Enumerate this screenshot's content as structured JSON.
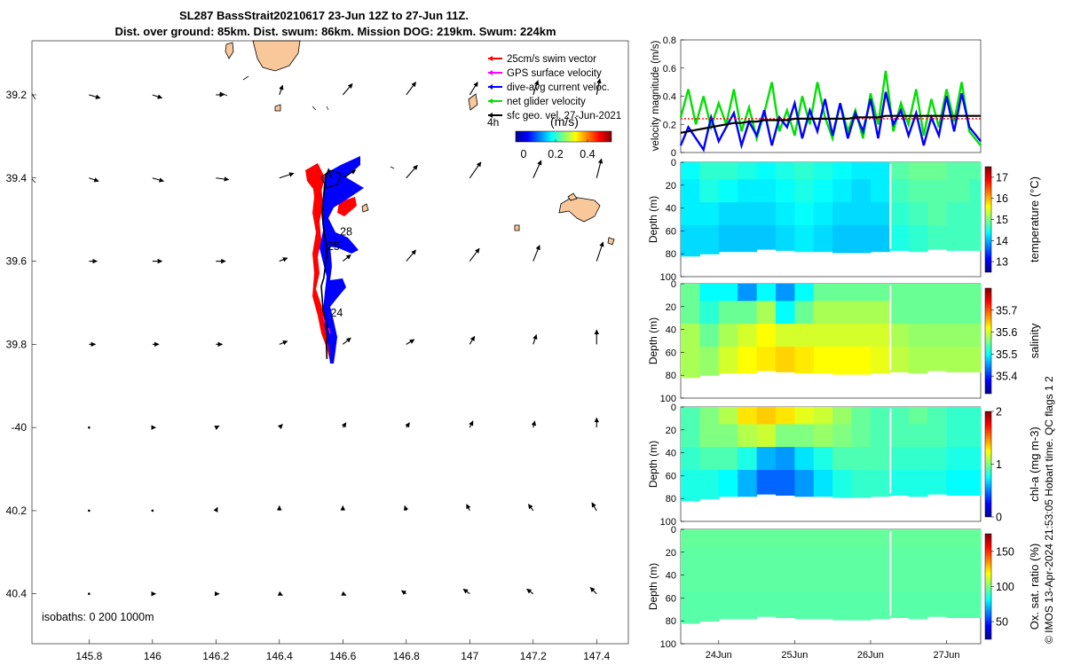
{
  "header": {
    "line1": "SL287 BassStrait20210617 23-Jun 12Z to 27-Jun 11Z.",
    "line2": "Dist. over ground: 85km. Dist. swum: 86km. Mission DOG: 219km. Swum: 224km"
  },
  "map": {
    "isobaths_label": "isobaths: 0   200  1000m",
    "age_label": "4h",
    "colorbar_title": "(m/s)",
    "colorbar_ticks": [
      "0",
      "0.2",
      "0.4"
    ],
    "colorbar_values": [
      0,
      0.2,
      0.4
    ],
    "colorbar_range": [
      -0.05,
      0.55
    ],
    "legend": [
      {
        "label": "25cm/s swim vector",
        "color": "#ff0000"
      },
      {
        "label": "GPS surface velocity",
        "color": "#ff00ff"
      },
      {
        "label": "dive-avg current veloc.",
        "color": "#0000ff"
      },
      {
        "label": "net glider velocity",
        "color": "#00e000"
      },
      {
        "label": "sfc geo. vel. 27-Jun-2021",
        "color": "#000000"
      }
    ],
    "day_labels": [
      {
        "text": "28"
      },
      {
        "text": "25"
      },
      {
        "text": "24"
      }
    ]
  },
  "colors": {
    "land": "#f8c89a",
    "red_track": "#ff0000",
    "blue_track": "#0000ff",
    "magenta": "#ff00ff"
  },
  "time_axis": {
    "ticks": [
      "24Jun",
      "25Jun",
      "26Jun",
      "27Jun"
    ]
  },
  "side_label": "© IMOS 13-Apr-2024 21:53:05 Hobart time. QC flags 1  2",
  "panels": {
    "velocity": {
      "ylabel": "velocity magnitude (m/s)"
    },
    "temperature": {
      "ylabel": "Depth (m)",
      "cbar_label": "temperature (°C)",
      "cbar_ticks": [
        "13",
        "14",
        "15",
        "16",
        "17"
      ]
    },
    "salinity": {
      "ylabel": "Depth (m)",
      "cbar_label": "salinity",
      "cbar_ticks": [
        "35.4",
        "35.5",
        "35.6",
        "35.7"
      ]
    },
    "chla": {
      "ylabel": "Depth (m)",
      "cbar_label": "chl-a (mg m-3)",
      "cbar_ticks": [
        "0",
        "1",
        "2"
      ]
    },
    "oxygen": {
      "ylabel": "Depth (m)",
      "cbar_label": "Ox. sat. ratio (%)",
      "cbar_ticks": [
        "50",
        "100",
        "150"
      ]
    }
  },
  "chart_data": [
    {
      "type": "scatter",
      "name": "glider track map",
      "xlim": [
        145.62,
        147.5
      ],
      "ylim": [
        -40.52,
        -39.07
      ],
      "x_ticks": [
        145.8,
        146,
        146.2,
        146.4,
        146.6,
        146.8,
        147,
        147.2,
        147.4
      ],
      "x_tick_labels": [
        "145.8",
        "146",
        "146.2",
        "146.4",
        "146.6",
        "146.8",
        "147",
        "147.2",
        "147.4"
      ],
      "y_ticks": [
        -39.2,
        -39.4,
        -39.6,
        -39.8,
        -40.0,
        -40.2,
        -40.4
      ],
      "y_tick_labels": [
        "39.2",
        "39.4",
        "39.6",
        "39.8",
        "-40",
        "40.2",
        "40.4"
      ],
      "track": {
        "lon": [
          146.55,
          146.548,
          146.552,
          146.545,
          146.538,
          146.535,
          146.532,
          146.54,
          146.545,
          146.55,
          146.548,
          146.542,
          146.538,
          146.535,
          146.538,
          146.54,
          146.542,
          146.545,
          146.55,
          146.555,
          146.56,
          146.565
        ],
        "lat": [
          -39.835,
          -39.8,
          -39.77,
          -39.74,
          -39.72,
          -39.69,
          -39.66,
          -39.64,
          -39.61,
          -39.585,
          -39.56,
          -39.54,
          -39.51,
          -39.48,
          -39.46,
          -39.44,
          -39.42,
          -39.405,
          -39.39,
          -39.38,
          -39.39,
          -39.4
        ]
      },
      "day_marks": [
        {
          "label": "24",
          "lon": 146.55,
          "lat": -39.725
        },
        {
          "label": "25",
          "lon": 146.54,
          "lat": -39.565
        },
        {
          "label": "28",
          "lon": 146.58,
          "lat": -39.53
        }
      ],
      "surface_velocity": {
        "grid_lon": [
          145.8,
          146.0,
          146.2,
          146.4,
          146.6,
          146.8,
          147.0,
          147.2,
          147.4
        ],
        "grid_lat": [
          -39.2,
          -39.4,
          -39.6,
          -39.8,
          -40.0,
          -40.2,
          -40.4
        ],
        "u": [
          [
            0.07,
            0.06,
            0.05,
            0.02,
            0.06,
            0.06,
            0.05,
            0.03,
            0.02
          ],
          [
            0.06,
            0.07,
            0.08,
            0.09,
            0.08,
            0.07,
            0.07,
            0.05,
            0.03
          ],
          [
            0.05,
            0.06,
            0.06,
            0.05,
            0.05,
            0.06,
            0.06,
            0.04,
            0.04
          ],
          [
            0.04,
            0.04,
            0.04,
            0.05,
            0.05,
            0.05,
            0.03,
            0.02,
            0.0
          ],
          [
            0.01,
            0.02,
            0.02,
            0.02,
            0.02,
            0.02,
            0.02,
            0.01,
            0.0
          ],
          [
            0.01,
            0.01,
            0.01,
            0.0,
            0.0,
            -0.01,
            -0.02,
            -0.03,
            -0.03
          ],
          [
            0.01,
            0.02,
            0.02,
            0.02,
            0.02,
            -0.03,
            -0.04,
            -0.04,
            -0.04
          ]
        ],
        "v": [
          [
            -0.02,
            -0.02,
            0.0,
            0.06,
            0.07,
            0.08,
            0.08,
            0.09,
            0.1
          ],
          [
            -0.02,
            -0.02,
            -0.01,
            0.03,
            0.05,
            0.08,
            0.1,
            0.11,
            0.12
          ],
          [
            0.0,
            0.0,
            0.0,
            0.02,
            0.04,
            0.07,
            0.08,
            0.1,
            0.12
          ],
          [
            0.0,
            0.0,
            0.0,
            0.02,
            0.04,
            0.03,
            0.05,
            0.06,
            0.09
          ],
          [
            0.0,
            0.0,
            0.01,
            0.02,
            0.03,
            0.03,
            0.04,
            0.04,
            0.06
          ],
          [
            0.0,
            0.0,
            0.02,
            0.03,
            0.03,
            0.03,
            0.04,
            0.04,
            0.05
          ],
          [
            0.0,
            0.0,
            0.0,
            -0.01,
            -0.01,
            0.02,
            0.03,
            0.03,
            0.04
          ]
        ]
      }
    },
    {
      "type": "line",
      "name": "velocity magnitude",
      "ylabel": "velocity magnitude (m/s)",
      "xlim": [
        23.5,
        27.45
      ],
      "ylim": [
        0,
        0.8
      ],
      "y_ticks": [
        0,
        0.2,
        0.4,
        0.6,
        0.8
      ],
      "y_tick_labels": [
        "0",
        "0.2",
        "0.4",
        "0.6",
        "0.8"
      ],
      "x": [
        23.5,
        23.6,
        23.7,
        23.8,
        23.9,
        24.0,
        24.1,
        24.2,
        24.3,
        24.4,
        24.5,
        24.6,
        24.7,
        24.8,
        24.9,
        25.0,
        25.1,
        25.2,
        25.3,
        25.4,
        25.5,
        25.6,
        25.7,
        25.8,
        25.9,
        26.0,
        26.1,
        26.2,
        26.3,
        26.4,
        26.5,
        26.6,
        26.7,
        26.8,
        26.9,
        27.0,
        27.1,
        27.2,
        27.3,
        27.45
      ],
      "series": [
        {
          "name": "net glider velocity",
          "color": "#00e000",
          "values": [
            0.25,
            0.45,
            0.2,
            0.4,
            0.18,
            0.35,
            0.2,
            0.45,
            0.15,
            0.32,
            0.1,
            0.28,
            0.5,
            0.15,
            0.3,
            0.12,
            0.4,
            0.2,
            0.5,
            0.25,
            0.1,
            0.35,
            0.15,
            0.3,
            0.1,
            0.42,
            0.2,
            0.58,
            0.15,
            0.35,
            0.2,
            0.45,
            0.12,
            0.38,
            0.18,
            0.45,
            0.22,
            0.5,
            0.15,
            0.05
          ]
        },
        {
          "name": "dive-avg current veloc.",
          "color": "#0000ff",
          "values": [
            0.05,
            0.18,
            0.1,
            0.02,
            0.25,
            0.08,
            0.18,
            0.28,
            0.05,
            0.22,
            0.12,
            0.3,
            0.05,
            0.25,
            0.18,
            0.35,
            0.1,
            0.3,
            0.15,
            0.38,
            0.12,
            0.35,
            0.1,
            0.28,
            0.15,
            0.38,
            0.1,
            0.43,
            0.2,
            0.3,
            0.12,
            0.28,
            0.05,
            0.25,
            0.12,
            0.4,
            0.15,
            0.42,
            0.18,
            0.08
          ]
        },
        {
          "name": "GPS surface velocity",
          "color": "#ff0000",
          "values": [
            0.24,
            0.24,
            0.24,
            0.24,
            0.24,
            0.24,
            0.24,
            0.24,
            0.24,
            0.24,
            0.24,
            0.24,
            0.24,
            0.24,
            0.24,
            0.24,
            0.24,
            0.24,
            0.24,
            0.24,
            0.24,
            0.24,
            0.24,
            0.24,
            0.24,
            0.24,
            0.24,
            0.24,
            0.24,
            0.24,
            0.24,
            0.24,
            0.24,
            0.24,
            0.24,
            0.24,
            0.24,
            0.24,
            0.24,
            0.24
          ]
        },
        {
          "name": "sfc geo. vel. 27-Jun-2021",
          "color": "#000000",
          "values": [
            0.14,
            0.15,
            0.16,
            0.17,
            0.18,
            0.19,
            0.2,
            0.21,
            0.21,
            0.22,
            0.22,
            0.23,
            0.23,
            0.23,
            0.23,
            0.24,
            0.24,
            0.24,
            0.24,
            0.24,
            0.24,
            0.24,
            0.24,
            0.25,
            0.25,
            0.25,
            0.25,
            0.26,
            0.26,
            0.26,
            0.26,
            0.26,
            0.26,
            0.26,
            0.26,
            0.26,
            0.26,
            0.26,
            0.26,
            0.26
          ]
        }
      ]
    },
    {
      "type": "heatmap",
      "name": "temperature",
      "ylabel": "Depth (m)",
      "clim": [
        12.5,
        17.5
      ],
      "ylim": [
        100,
        0
      ],
      "y_ticks": [
        0,
        20,
        40,
        60,
        80,
        100
      ],
      "depth_max_m": [
        82,
        80,
        78,
        78,
        76,
        77,
        78,
        78,
        79,
        79,
        78,
        77,
        78,
        76,
        77,
        77
      ],
      "times": [
        23.5,
        23.75,
        24.0,
        24.25,
        24.5,
        24.75,
        25.0,
        25.25,
        25.5,
        25.75,
        26.0,
        26.25,
        26.5,
        26.75,
        27.0,
        27.3
      ],
      "depths": [
        5,
        25,
        45,
        65
      ],
      "values": [
        [
          14.4,
          14.6,
          14.6,
          14.5,
          14.4,
          14.5,
          14.6,
          14.5,
          14.4,
          14.3,
          14.3,
          14.8,
          14.9,
          14.9,
          14.8,
          14.8
        ],
        [
          14.3,
          14.5,
          14.4,
          14.3,
          14.3,
          14.4,
          14.5,
          14.4,
          14.3,
          14.2,
          14.3,
          14.7,
          14.8,
          14.8,
          14.8,
          14.7
        ],
        [
          14.3,
          14.3,
          14.2,
          14.2,
          14.2,
          14.3,
          14.4,
          14.3,
          14.2,
          14.2,
          14.2,
          14.6,
          14.7,
          14.8,
          14.7,
          14.7
        ],
        [
          14.2,
          14.2,
          14.1,
          14.1,
          14.1,
          14.2,
          14.3,
          14.2,
          14.1,
          14.1,
          14.1,
          14.5,
          14.6,
          14.7,
          14.7,
          14.7
        ]
      ]
    },
    {
      "type": "heatmap",
      "name": "salinity",
      "ylabel": "Depth (m)",
      "clim": [
        35.32,
        35.8
      ],
      "ylim": [
        100,
        0
      ],
      "y_ticks": [
        0,
        20,
        40,
        60,
        80,
        100
      ],
      "depth_max_m": [
        82,
        80,
        78,
        78,
        76,
        77,
        78,
        78,
        79,
        79,
        78,
        77,
        78,
        76,
        77,
        77
      ],
      "times": [
        23.5,
        23.75,
        24.0,
        24.25,
        24.5,
        24.75,
        25.0,
        25.25,
        25.5,
        25.75,
        26.0,
        26.25,
        26.5,
        26.75,
        27.0,
        27.3
      ],
      "depths": [
        5,
        25,
        45,
        65
      ],
      "values": [
        [
          35.55,
          35.5,
          35.5,
          35.45,
          35.5,
          35.45,
          35.5,
          35.55,
          35.55,
          35.55,
          35.55,
          35.55,
          35.55,
          35.55,
          35.55,
          35.55
        ],
        [
          35.55,
          35.52,
          35.55,
          35.55,
          35.58,
          35.5,
          35.55,
          35.58,
          35.58,
          35.58,
          35.58,
          35.55,
          35.55,
          35.55,
          35.55,
          35.55
        ],
        [
          35.58,
          35.55,
          35.58,
          35.6,
          35.62,
          35.6,
          35.6,
          35.6,
          35.6,
          35.6,
          35.6,
          35.58,
          35.57,
          35.57,
          35.57,
          35.57
        ],
        [
          35.58,
          35.57,
          35.6,
          35.62,
          35.63,
          35.64,
          35.63,
          35.62,
          35.62,
          35.62,
          35.61,
          35.59,
          35.58,
          35.58,
          35.58,
          35.58
        ]
      ]
    },
    {
      "type": "heatmap",
      "name": "chl-a",
      "ylabel": "Depth (m)",
      "clim": [
        0,
        2
      ],
      "ylim": [
        100,
        0
      ],
      "y_ticks": [
        0,
        20,
        40,
        60,
        80,
        100
      ],
      "depth_max_m": [
        82,
        80,
        78,
        78,
        76,
        77,
        78,
        78,
        79,
        79,
        78,
        77,
        78,
        76,
        77,
        77
      ],
      "times": [
        23.5,
        23.75,
        24.0,
        24.25,
        24.5,
        24.75,
        25.0,
        25.25,
        25.5,
        25.75,
        26.0,
        26.25,
        26.5,
        26.75,
        27.0,
        27.3
      ],
      "depths": [
        5,
        25,
        45,
        65
      ],
      "values": [
        [
          0.9,
          1.0,
          1.1,
          1.3,
          1.35,
          1.3,
          1.2,
          1.15,
          1.05,
          0.95,
          0.9,
          0.9,
          0.95,
          0.9,
          0.85,
          0.85
        ],
        [
          0.9,
          1.0,
          1.0,
          1.1,
          1.15,
          1.0,
          1.0,
          1.05,
          1.0,
          0.95,
          0.9,
          0.9,
          0.9,
          0.9,
          0.85,
          0.85
        ],
        [
          0.85,
          0.9,
          0.9,
          0.8,
          0.6,
          0.55,
          0.7,
          0.8,
          0.9,
          0.9,
          0.9,
          0.85,
          0.85,
          0.85,
          0.8,
          0.8
        ],
        [
          0.8,
          0.8,
          0.75,
          0.6,
          0.45,
          0.45,
          0.55,
          0.7,
          0.8,
          0.85,
          0.85,
          0.8,
          0.8,
          0.8,
          0.75,
          0.75
        ]
      ]
    },
    {
      "type": "heatmap",
      "name": "oxygen saturation",
      "ylabel": "Depth (m)",
      "clim": [
        25,
        175
      ],
      "ylim": [
        100,
        0
      ],
      "y_ticks": [
        0,
        20,
        40,
        60,
        80,
        100
      ],
      "depth_max_m": [
        82,
        80,
        78,
        78,
        76,
        77,
        78,
        78,
        79,
        79,
        78,
        77,
        78,
        76,
        77,
        77
      ],
      "times": [
        23.5,
        23.75,
        24.0,
        24.25,
        24.5,
        24.75,
        25.0,
        25.25,
        25.5,
        25.75,
        26.0,
        26.25,
        26.5,
        26.75,
        27.0,
        27.3
      ],
      "depths": [
        5,
        25,
        45,
        65
      ],
      "values": [
        [
          96,
          96,
          96,
          96,
          96,
          96,
          96,
          96,
          96,
          96,
          96,
          96,
          96,
          96,
          96,
          96
        ],
        [
          95,
          95,
          95,
          95,
          95,
          95,
          95,
          95,
          95,
          95,
          95,
          95,
          95,
          95,
          95,
          95
        ],
        [
          95,
          95,
          95,
          95,
          95,
          95,
          95,
          95,
          95,
          95,
          95,
          95,
          95,
          95,
          95,
          95
        ],
        [
          94,
          94,
          94,
          94,
          94,
          94,
          94,
          94,
          94,
          94,
          94,
          94,
          94,
          94,
          94,
          94
        ]
      ]
    }
  ]
}
